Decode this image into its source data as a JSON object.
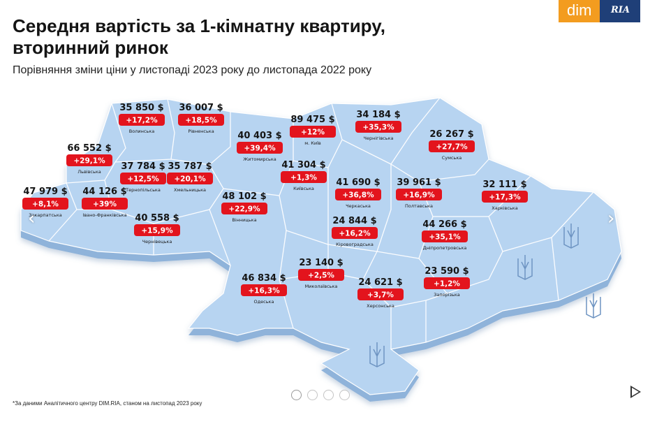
{
  "header": {
    "title_line1": "Середня вартість за 1-кімнатну квартиру,",
    "title_line2": "вторинний ринок",
    "subtitle": "Порівняння зміни ціни у листопаді 2023 року до листопада 2022 року"
  },
  "logo": {
    "dim": "dim",
    "ria": "RIA"
  },
  "colors": {
    "map_fill": "#b7d4f1",
    "map_side": "#8fb3da",
    "badge": "#e3141d",
    "border": "#ffffff"
  },
  "regions": [
    {
      "id": "volyn",
      "price": "35 850 $",
      "change": "+17,2%",
      "name": "Волинська"
    },
    {
      "id": "rivne",
      "price": "36 007 $",
      "change": "+18,5%",
      "name": "Рівненська"
    },
    {
      "id": "zhytomyr",
      "price": "40 403 $",
      "change": "+39,4%",
      "name": "Житомирська"
    },
    {
      "id": "kyiv-city",
      "price": "89 475 $",
      "change": "+12%",
      "name": "м. Київ"
    },
    {
      "id": "chernihiv",
      "price": "34 184 $",
      "change": "+35,3%",
      "name": "Чернігівська"
    },
    {
      "id": "sumy",
      "price": "26 267 $",
      "change": "+27,7%",
      "name": "Сумська"
    },
    {
      "id": "lviv",
      "price": "66 552 $",
      "change": "+29,1%",
      "name": "Львівська"
    },
    {
      "id": "ternopil",
      "price": "37 784 $",
      "change": "+12,5%",
      "name": "Тернопільська"
    },
    {
      "id": "khmelnytskyi",
      "price": "35 787 $",
      "change": "+20,1%",
      "name": "Хмельницька"
    },
    {
      "id": "kyiv-obl",
      "price": "41 304 $",
      "change": "+1,3%",
      "name": "Київська"
    },
    {
      "id": "zakarpattia",
      "price": "47 979 $",
      "change": "+8,1%",
      "name": "Закарпатська"
    },
    {
      "id": "ivano-frankivsk",
      "price": "44 126 $",
      "change": "+39%",
      "name": "Івано-Франківська"
    },
    {
      "id": "cherkasy",
      "price": "41 690 $",
      "change": "+36,8%",
      "name": "Черкаська"
    },
    {
      "id": "poltava",
      "price": "39 961 $",
      "change": "+16,9%",
      "name": "Полтавська"
    },
    {
      "id": "kharkiv",
      "price": "32 111 $",
      "change": "+17,3%",
      "name": "Харківська"
    },
    {
      "id": "vinnytsia",
      "price": "48 102 $",
      "change": "+22,9%",
      "name": "Вінницька"
    },
    {
      "id": "chernivtsi",
      "price": "40 558 $",
      "change": "+15,9%",
      "name": "Чернівецька"
    },
    {
      "id": "kirovohrad",
      "price": "24 844 $",
      "change": "+16,2%",
      "name": "Кіровоградська"
    },
    {
      "id": "dnipro",
      "price": "44 266 $",
      "change": "+35,1%",
      "name": "Дніпропетровська"
    },
    {
      "id": "mykolaiv",
      "price": "23 140 $",
      "change": "+2,5%",
      "name": "Миколаївська"
    },
    {
      "id": "odesa",
      "price": "46 834 $",
      "change": "+16,3%",
      "name": "Одеська"
    },
    {
      "id": "kherson",
      "price": "24 621 $",
      "change": "+3,7%",
      "name": "Херсонська"
    },
    {
      "id": "zaporizhzhia",
      "price": "23 590 $",
      "change": "+1,2%",
      "name": "Запорізька"
    }
  ],
  "footnote": "*За даними Аналітичного центру DIM.RIA, станом на листопад 2023 року",
  "carousel": {
    "prev": "‹",
    "next": "›",
    "dots": 4,
    "active": 0
  }
}
